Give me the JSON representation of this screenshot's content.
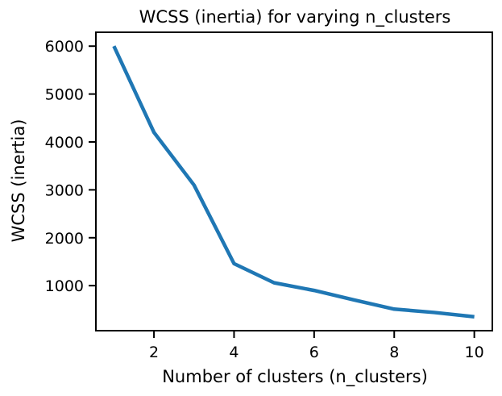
{
  "chart_data": {
    "type": "line",
    "title": "WCSS (inertia) for varying n_clusters",
    "xlabel": "Number of clusters (n_clusters)",
    "ylabel": "WCSS (inertia)",
    "x": [
      1,
      2,
      3,
      4,
      5,
      6,
      7,
      8,
      9,
      10
    ],
    "series": [
      {
        "values": [
          6000,
          4200,
          3100,
          1460,
          1060,
          900,
          700,
          510,
          440,
          350
        ],
        "color": "#1f77b4"
      }
    ],
    "xlim": [
      0.55,
      10.45
    ],
    "ylim": [
      60,
      6290
    ],
    "xticks": [
      2,
      4,
      6,
      8,
      10
    ],
    "yticks": [
      1000,
      2000,
      3000,
      4000,
      5000,
      6000
    ],
    "grid": false,
    "legend": "none"
  }
}
